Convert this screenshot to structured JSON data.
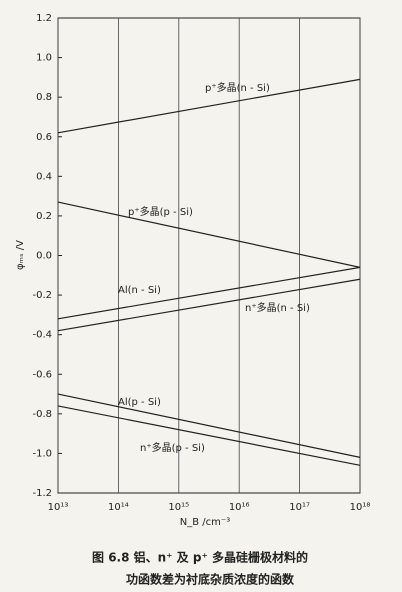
{
  "chart_data": {
    "type": "line",
    "x_label": "N_B /cm⁻³",
    "y_label": "φₘₛ /V",
    "caption": [
      "图 6.8  铝、n⁺ 及 p⁺ 多晶硅栅极材料的",
      "功函数差为衬底杂质浓度的函数"
    ],
    "x": [
      10000000000000,
      1000000000000000000
    ],
    "log_x": true,
    "grid": "x",
    "xlim": [
      10000000000000,
      1000000000000000000
    ],
    "xticks": [
      {
        "value": 10000000000000,
        "label": "10¹³"
      },
      {
        "value": 100000000000000,
        "label": "10¹⁴"
      },
      {
        "value": 1000000000000000,
        "label": "10¹⁵"
      },
      {
        "value": 10000000000000000,
        "label": "10¹⁶"
      },
      {
        "value": 100000000000000000,
        "label": "10¹⁷"
      },
      {
        "value": 1000000000000000000,
        "label": "10¹⁸"
      }
    ],
    "ylim": [
      -1.2,
      1.2
    ],
    "yticks": [
      -1.2,
      {
        "value": -1.0,
        "label": "-1.0"
      },
      -0.8,
      -0.6,
      -0.4,
      -0.2,
      {
        "value": 0,
        "label": "0.0"
      },
      0.2,
      0.4,
      0.6,
      0.8,
      {
        "value": 1.0,
        "label": "1.0"
      },
      1.2
    ],
    "series": [
      {
        "name": "p⁺多晶(n - Si)",
        "color": "#222",
        "values": [
          0.62,
          0.89
        ]
      },
      {
        "name": "p⁺多晶(p - Si)",
        "color": "#222",
        "values": [
          0.27,
          -0.06
        ]
      },
      {
        "name": "Al(n - Si)",
        "color": "#222",
        "values": [
          -0.32,
          -0.06
        ]
      },
      {
        "name": "n⁺多晶(n - Si)",
        "color": "#222",
        "values": [
          -0.38,
          -0.12
        ]
      },
      {
        "name": "Al(p - Si)",
        "color": "#222",
        "values": [
          -0.7,
          -1.02
        ]
      },
      {
        "name": "n⁺多晶(p - Si)",
        "color": "#222",
        "values": [
          -0.76,
          -1.06
        ]
      }
    ]
  }
}
